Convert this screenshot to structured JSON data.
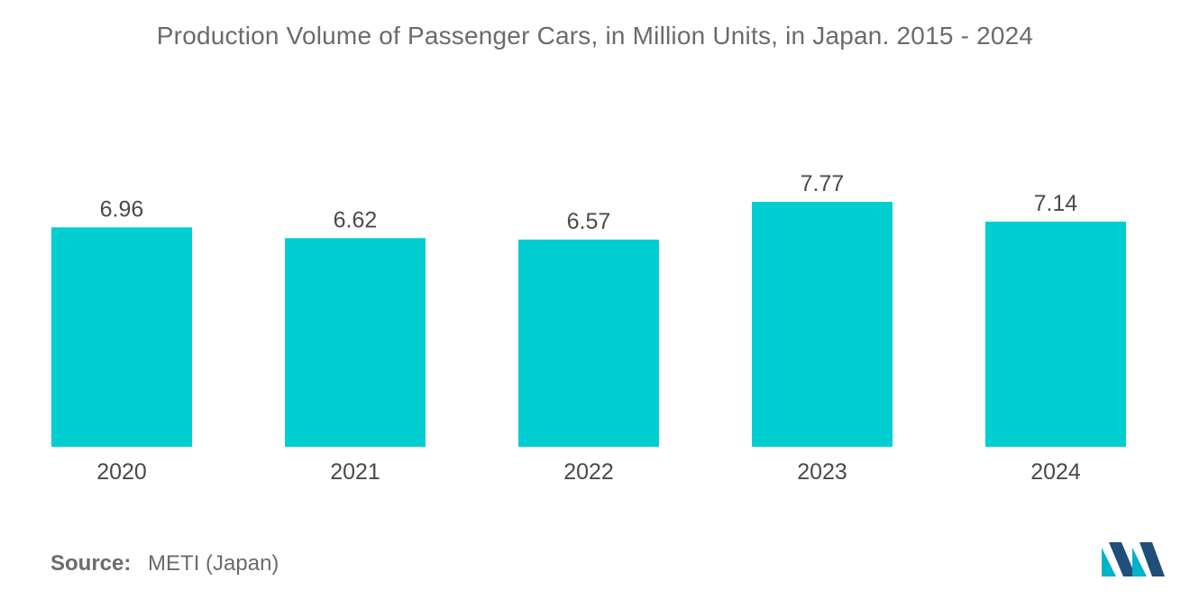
{
  "chart_data": {
    "type": "bar",
    "title": "Production Volume of Passenger Cars, in Million Units,  in Japan. 2015 - 2024",
    "categories": [
      "2020",
      "2021",
      "2022",
      "2023",
      "2024"
    ],
    "values": [
      6.96,
      6.62,
      6.57,
      7.77,
      7.14
    ],
    "value_labels": [
      "6.96",
      "6.62",
      "6.57",
      "7.77",
      "7.14"
    ],
    "xlabel": "",
    "ylabel": "",
    "ylim": [
      0,
      8.5
    ],
    "grid": false,
    "legend": "none",
    "bar_color": "#00CED1"
  },
  "source": {
    "label": "Source:",
    "text": "METI (Japan)"
  },
  "logo": {
    "icon": "mordor-intelligence-logo-icon",
    "color_dark": "#1f4e79",
    "color_light": "#00b3c6"
  }
}
